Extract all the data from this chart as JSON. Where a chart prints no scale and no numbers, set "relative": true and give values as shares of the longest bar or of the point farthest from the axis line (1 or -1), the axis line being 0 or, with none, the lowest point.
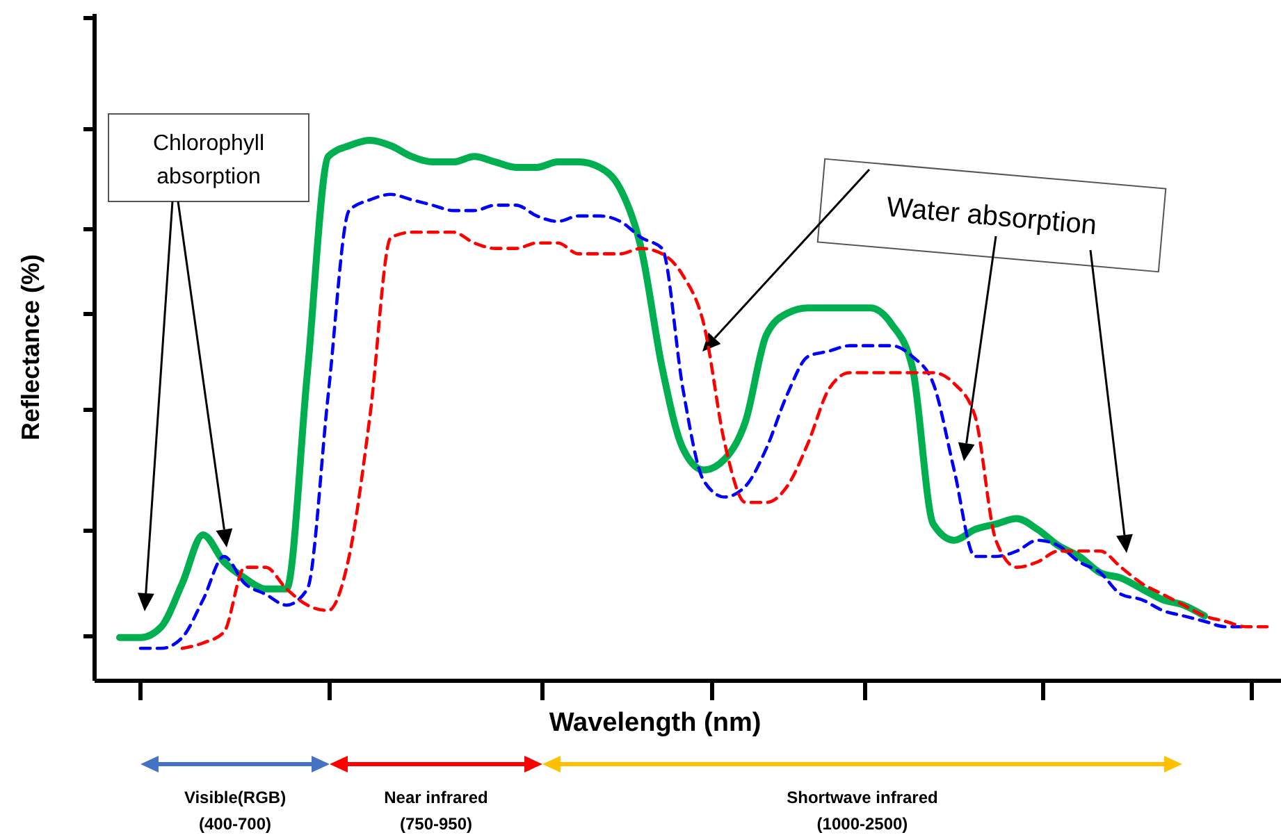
{
  "chart_data": {
    "type": "line",
    "relative": true,
    "xlabel": "Wavelength (nm)",
    "ylabel": "Reflectance (%)",
    "categories": [
      null,
      null,
      null,
      null,
      null,
      null,
      null,
      null,
      null,
      null,
      null,
      null,
      null,
      null,
      null,
      null,
      null,
      null,
      null,
      null,
      null,
      null,
      null,
      null,
      null,
      null,
      null,
      null,
      null,
      null,
      null,
      null,
      null,
      null,
      null,
      null,
      null,
      null,
      null,
      null,
      null,
      null,
      null,
      null,
      null,
      null,
      null,
      null,
      null,
      null,
      null,
      null,
      null,
      null,
      null,
      null
    ],
    "series": [
      {
        "color": "#00b050",
        "line_style": "solid",
        "values": [
          0.08,
          0.08,
          0.1,
          0.18,
          0.27,
          0.22,
          0.19,
          0.17,
          0.17,
          0.57,
          0.97,
          0.99,
          1.0,
          0.99,
          0.97,
          0.96,
          0.96,
          0.97,
          0.96,
          0.95,
          0.95,
          0.96,
          0.96,
          0.95,
          0.91,
          0.8,
          0.58,
          0.43,
          0.39,
          0.41,
          0.48,
          0.64,
          0.68,
          0.69,
          0.69,
          0.69,
          0.69,
          0.66,
          0.58,
          0.29,
          0.26,
          0.28,
          0.29,
          0.3,
          0.28,
          0.25,
          0.23,
          0.2,
          0.19,
          0.17,
          0.15,
          0.14,
          0.12,
          null,
          null,
          null
        ]
      },
      {
        "color": "#0000ff",
        "line_style": "dashed",
        "values": [
          null,
          0.06,
          0.06,
          0.08,
          0.15,
          0.23,
          0.18,
          0.16,
          0.14,
          0.17,
          0.53,
          0.87,
          0.89,
          0.9,
          0.89,
          0.88,
          0.87,
          0.87,
          0.88,
          0.88,
          0.86,
          0.85,
          0.86,
          0.86,
          0.85,
          0.82,
          0.8,
          0.54,
          0.37,
          0.34,
          0.36,
          0.43,
          0.53,
          0.6,
          0.61,
          0.62,
          0.62,
          0.62,
          0.6,
          0.55,
          0.39,
          0.23,
          0.23,
          0.24,
          0.26,
          0.25,
          0.22,
          0.2,
          0.16,
          0.15,
          0.13,
          0.12,
          0.11,
          0.1,
          0.1,
          null
        ]
      },
      {
        "color": "#ff0000",
        "line_style": "dashed",
        "values": [
          null,
          null,
          null,
          0.06,
          0.07,
          0.09,
          0.21,
          0.21,
          0.17,
          0.14,
          0.13,
          0.23,
          0.49,
          0.82,
          0.83,
          0.83,
          0.83,
          0.81,
          0.8,
          0.8,
          0.81,
          0.81,
          0.79,
          0.79,
          0.79,
          0.8,
          0.79,
          0.75,
          0.66,
          0.44,
          0.33,
          0.33,
          0.36,
          0.44,
          0.54,
          0.57,
          0.57,
          0.57,
          0.57,
          0.57,
          0.55,
          0.49,
          0.26,
          0.21,
          0.22,
          0.24,
          0.24,
          0.24,
          0.21,
          0.18,
          0.16,
          0.14,
          0.12,
          0.11,
          0.1,
          0.1
        ]
      }
    ],
    "annotations": [
      "Chlorophyll\nabsorption",
      "Water absorption",
      "Visible(RGB)\n(400-700)",
      "Near infrared\n(750-950)",
      "Shortwave infrared\n(1000-2500)"
    ]
  }
}
